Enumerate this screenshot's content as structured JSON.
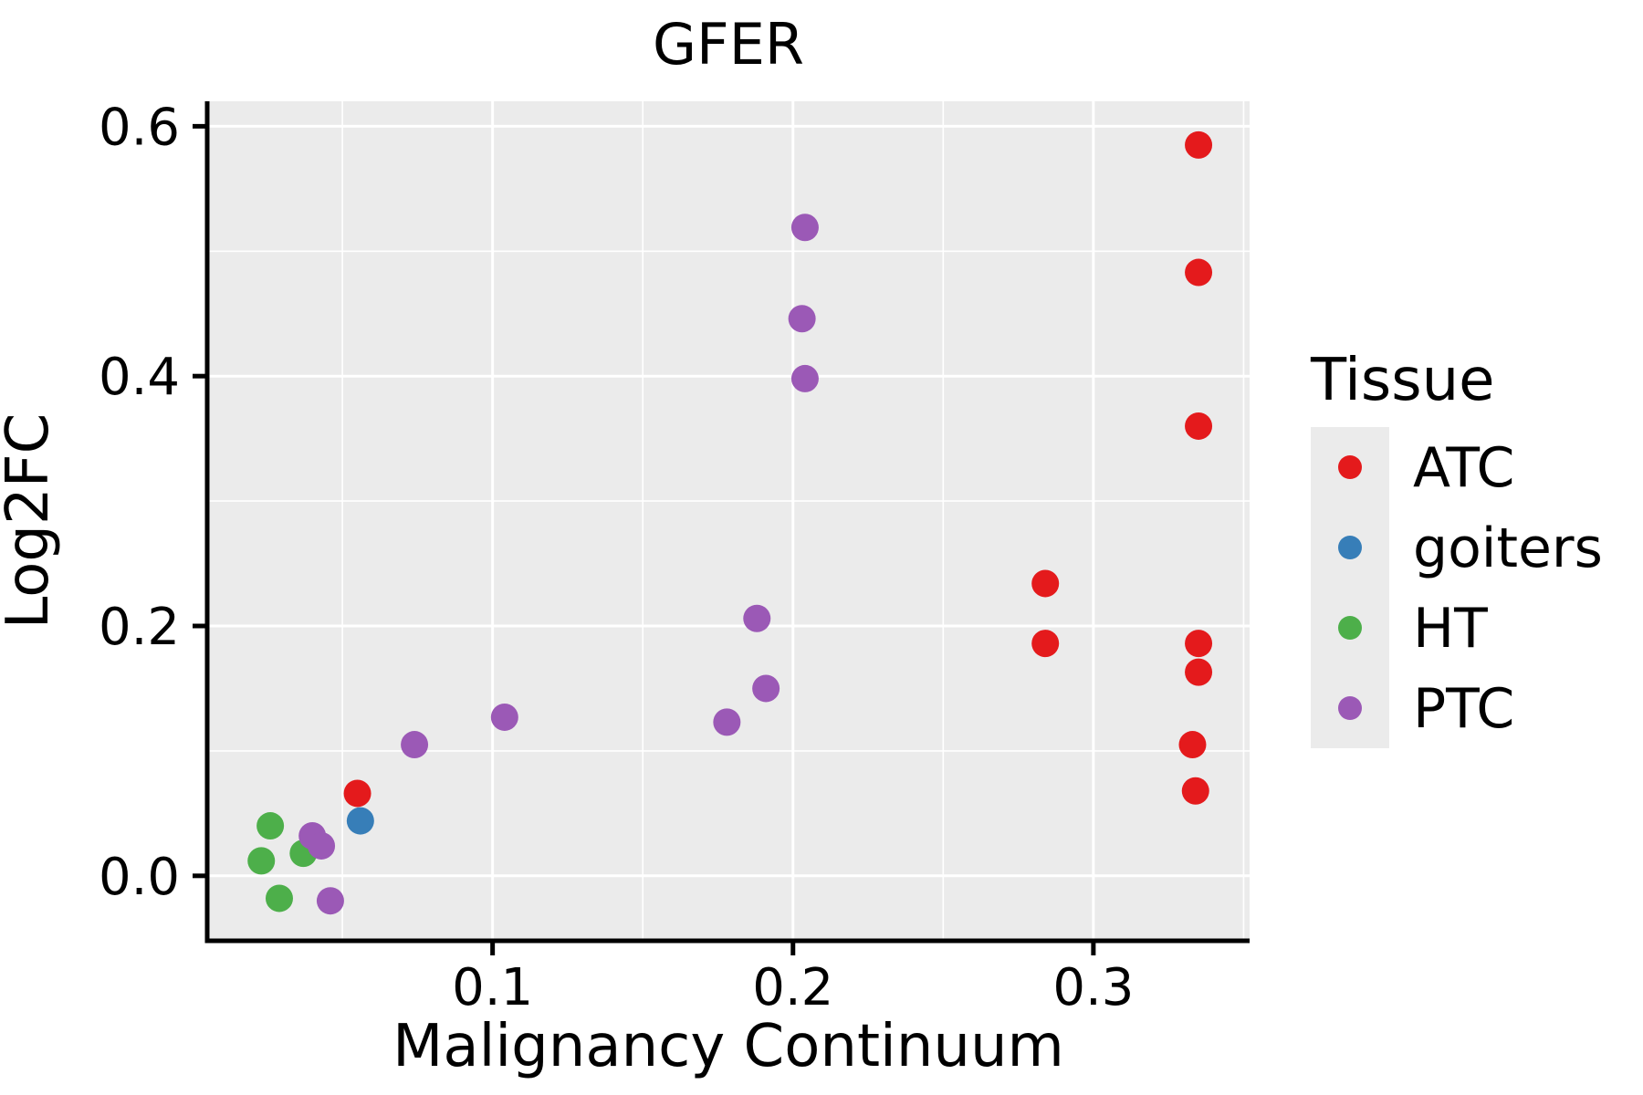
{
  "title": "GFER",
  "legend": {
    "title": "Tissue",
    "items": [
      {
        "label": "ATC",
        "color": "#E41A1C"
      },
      {
        "label": "goiters",
        "color": "#377EB8"
      },
      {
        "label": "HT",
        "color": "#4DAF4A"
      },
      {
        "label": "PTC",
        "color": "#9B59B6"
      }
    ]
  },
  "colors": {
    "panel_bg": "#EBEBEB",
    "grid": "#FFFFFF",
    "axis": "#000000"
  },
  "chart_data": {
    "type": "scatter",
    "title": "GFER",
    "xlabel": "Malignancy Continuum",
    "ylabel": "Log2FC",
    "xlim": [
      0.005,
      0.352
    ],
    "ylim": [
      -0.052,
      0.62
    ],
    "xticks": [
      0.1,
      0.2,
      0.3
    ],
    "yticks": [
      0.0,
      0.2,
      0.4,
      0.6
    ],
    "minor_xticks": [
      0.05,
      0.15,
      0.25,
      0.35
    ],
    "minor_yticks": [
      0.1,
      0.3,
      0.5
    ],
    "grid": true,
    "legend_position": "right",
    "series": [
      {
        "name": "ATC",
        "color": "#E41A1C",
        "points": [
          [
            0.335,
            0.585
          ],
          [
            0.335,
            0.483
          ],
          [
            0.335,
            0.36
          ],
          [
            0.284,
            0.234
          ],
          [
            0.284,
            0.186
          ],
          [
            0.335,
            0.186
          ],
          [
            0.335,
            0.163
          ],
          [
            0.333,
            0.105
          ],
          [
            0.334,
            0.068
          ],
          [
            0.055,
            0.066
          ]
        ]
      },
      {
        "name": "goiters",
        "color": "#377EB8",
        "points": [
          [
            0.056,
            0.044
          ]
        ]
      },
      {
        "name": "HT",
        "color": "#4DAF4A",
        "points": [
          [
            0.026,
            0.04
          ],
          [
            0.023,
            0.012
          ],
          [
            0.037,
            0.018
          ],
          [
            0.029,
            -0.018
          ]
        ]
      },
      {
        "name": "PTC",
        "color": "#9B59B6",
        "points": [
          [
            0.204,
            0.519
          ],
          [
            0.203,
            0.446
          ],
          [
            0.204,
            0.398
          ],
          [
            0.188,
            0.206
          ],
          [
            0.191,
            0.15
          ],
          [
            0.178,
            0.123
          ],
          [
            0.104,
            0.127
          ],
          [
            0.074,
            0.105
          ],
          [
            0.04,
            0.032
          ],
          [
            0.043,
            0.024
          ],
          [
            0.046,
            -0.02
          ]
        ]
      }
    ]
  }
}
